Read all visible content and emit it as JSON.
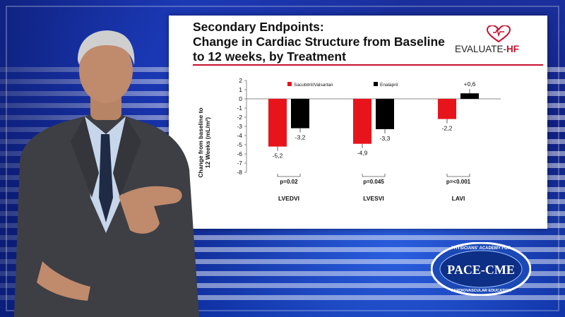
{
  "slide": {
    "title_line1": "Secondary Endpoints:",
    "title_line2": "Change in Cardiac Structure from Baseline",
    "title_line3": "to 12 weeks, by Treatment",
    "logo_text": "EVALUATE-",
    "logo_accent": "HF"
  },
  "chart_data": {
    "type": "bar",
    "categories": [
      "LVEDVI",
      "LVESVI",
      "LAVI"
    ],
    "series": [
      {
        "name": "Sacubitril/Valsartan",
        "color": "#e8141c",
        "values": [
          -5.2,
          -4.9,
          -2.2
        ],
        "labels": [
          "-5,2",
          "-4,9",
          "-2,2"
        ]
      },
      {
        "name": "Enalapril",
        "color": "#000000",
        "values": [
          -3.2,
          -3.3,
          0.6
        ],
        "labels": [
          "-3,2",
          "-3,3",
          "+0,6"
        ]
      }
    ],
    "p_values": [
      "p=0.02",
      "p=0.045",
      "p=<0.001"
    ],
    "ylabel_line1": "Change from baseline to",
    "ylabel_line2": "12 Weeks (mL/m²)",
    "ylim": [
      -8,
      2
    ],
    "yticks": [
      "2",
      "1",
      "0",
      "-1",
      "-2",
      "-3",
      "-4",
      "-5",
      "-6",
      "-7",
      "-8"
    ],
    "legend_position": "top"
  },
  "badge": {
    "top_arc": "PHYSICIANS' ACADEMY FOR",
    "name": "PACE-CME",
    "bottom_arc": "CARDIOVASCULAR EDUCATION"
  },
  "colors": {
    "accent_red": "#c8102e",
    "bar_red": "#e8141c",
    "background_blue": "#1a2f9c"
  }
}
